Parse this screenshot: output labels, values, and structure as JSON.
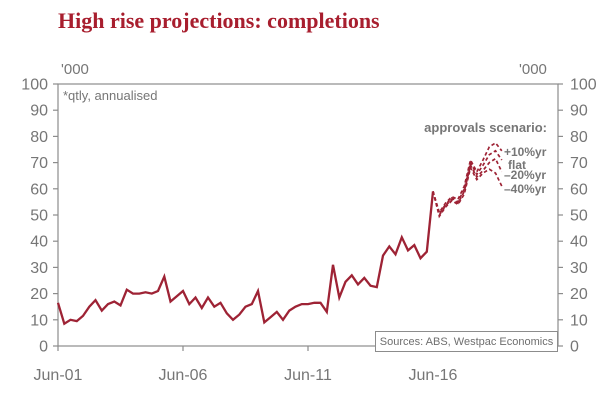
{
  "title": "High rise projections: completions",
  "note": "*qtly, annualised",
  "unit_left": "'000",
  "unit_right": "'000",
  "source": "Sources: ABS, Westpac Economics",
  "scenario_header": "approvals scenario:",
  "colors": {
    "line": "#9e2335",
    "title_red": "#a81e2e",
    "axis_gray": "#8c8c8c",
    "text_gray": "#767676"
  },
  "chart_data": {
    "type": "line",
    "title": "High rise projections: completions",
    "ylabel": "'000",
    "ylim": [
      0,
      100
    ],
    "ytick_step": 10,
    "grid": false,
    "x_axis": {
      "start": "Jun-2001",
      "frequency": "quarterly",
      "tick_labels": [
        "Jun-01",
        "Jun-06",
        "Jun-11",
        "Jun-16"
      ],
      "tick_quarters": [
        0,
        20,
        40,
        60
      ]
    },
    "series": [
      {
        "name": "completions actual",
        "style": "solid",
        "start_quarter": 0,
        "values": [
          16.5,
          8.5,
          10,
          9.5,
          11.5,
          15,
          17.5,
          13.5,
          16,
          17,
          15.5,
          21.5,
          20,
          20,
          20.5,
          20,
          21,
          26.5,
          17,
          19,
          21,
          16,
          18.5,
          14.5,
          18.5,
          15,
          16.5,
          12.5,
          10,
          12,
          15,
          16,
          21,
          9,
          11,
          13,
          10,
          13.5,
          15,
          16,
          16,
          16.5,
          16.5,
          13,
          31,
          18.5,
          24.5,
          27,
          23.5,
          26,
          23,
          22.5,
          34.5,
          38,
          35,
          41.5,
          36.5,
          38.5,
          33.5,
          36,
          59
        ]
      },
      {
        "name": "approvals scenario +10%yr",
        "label": "+10%yr",
        "label_value": 74,
        "style": "dashed",
        "start_quarter": 60,
        "values": [
          59,
          51,
          54.5,
          57,
          56,
          61,
          71,
          66.5,
          71,
          76,
          77.5,
          74.5
        ]
      },
      {
        "name": "approvals scenario flat",
        "label": "flat",
        "label_value": 69,
        "style": "dashed",
        "start_quarter": 60,
        "values": [
          59,
          50.5,
          54,
          56.5,
          55,
          60,
          70,
          65.5,
          69,
          73,
          74.5,
          71
        ]
      },
      {
        "name": "approvals scenario -20%yr",
        "label": "–20%yr",
        "label_value": 65.3,
        "style": "dashed",
        "start_quarter": 60,
        "values": [
          59,
          50,
          53.5,
          56,
          54.5,
          59,
          69,
          64.5,
          67,
          70,
          71.5,
          66.5
        ]
      },
      {
        "name": "approvals scenario -40%yr",
        "label": "–40%yr",
        "label_value": 59.8,
        "style": "dashed",
        "start_quarter": 60,
        "values": [
          59,
          49.5,
          53,
          55.5,
          54,
          58,
          68,
          63.5,
          66,
          67.5,
          66,
          61
        ]
      }
    ]
  }
}
